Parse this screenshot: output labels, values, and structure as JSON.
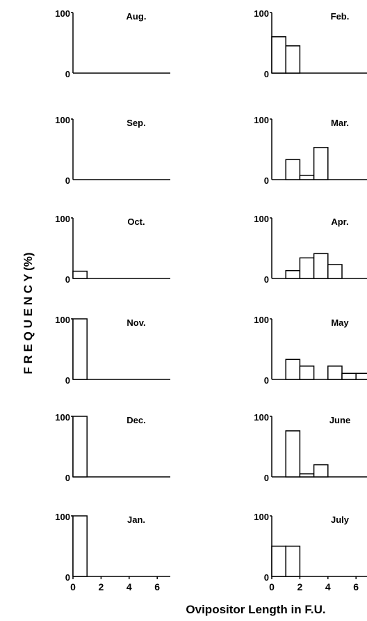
{
  "figure": {
    "ylabel": "F R E Q U E N C Y (%)",
    "xlabel": "Ovipositor Length in F.U."
  },
  "chart_data": [
    {
      "type": "bar",
      "month": "Aug.",
      "x": [
        0.5,
        1.5,
        2.5,
        3.5,
        4.5,
        5.5,
        6.5
      ],
      "values": [
        0,
        0,
        0,
        0,
        0,
        0,
        0
      ],
      "xlim": [
        0,
        7
      ],
      "ylim": [
        0,
        100
      ],
      "yticks": [
        "0",
        "100"
      ],
      "xticks": []
    },
    {
      "type": "bar",
      "month": "Sep.",
      "x": [
        0.5,
        1.5,
        2.5,
        3.5,
        4.5,
        5.5,
        6.5
      ],
      "values": [
        0,
        0,
        0,
        0,
        0,
        0,
        0
      ],
      "xlim": [
        0,
        7
      ],
      "ylim": [
        0,
        100
      ],
      "yticks": [
        "0",
        "100"
      ],
      "xticks": []
    },
    {
      "type": "bar",
      "month": "Oct.",
      "x": [
        0.5,
        1.5,
        2.5,
        3.5,
        4.5,
        5.5,
        6.5
      ],
      "values": [
        12,
        0,
        0,
        0,
        0,
        0,
        0
      ],
      "xlim": [
        0,
        7
      ],
      "ylim": [
        0,
        100
      ],
      "yticks": [
        "0",
        "100"
      ],
      "xticks": []
    },
    {
      "type": "bar",
      "month": "Nov.",
      "x": [
        0.5,
        1.5,
        2.5,
        3.5,
        4.5,
        5.5,
        6.5
      ],
      "values": [
        100,
        0,
        0,
        0,
        0,
        0,
        0
      ],
      "xlim": [
        0,
        7
      ],
      "ylim": [
        0,
        100
      ],
      "yticks": [
        "0",
        "100"
      ],
      "xticks": []
    },
    {
      "type": "bar",
      "month": "Dec.",
      "x": [
        0.5,
        1.5,
        2.5,
        3.5,
        4.5,
        5.5,
        6.5
      ],
      "values": [
        100,
        0,
        0,
        0,
        0,
        0,
        0
      ],
      "xlim": [
        0,
        7
      ],
      "ylim": [
        0,
        100
      ],
      "yticks": [
        "0",
        "100"
      ],
      "xticks": []
    },
    {
      "type": "bar",
      "month": "Jan.",
      "x": [
        0.5,
        1.5,
        2.5,
        3.5,
        4.5,
        5.5,
        6.5
      ],
      "values": [
        100,
        0,
        0,
        0,
        0,
        0,
        0
      ],
      "xlim": [
        0,
        7
      ],
      "ylim": [
        0,
        100
      ],
      "yticks": [
        "0",
        "100"
      ],
      "xticks": [
        "0",
        "2",
        "4",
        "6"
      ]
    },
    {
      "type": "bar",
      "month": "Feb.",
      "x": [
        0.5,
        1.5,
        2.5,
        3.5,
        4.5,
        5.5,
        6.5
      ],
      "values": [
        60,
        45,
        0,
        0,
        0,
        0,
        0
      ],
      "xlim": [
        0,
        7
      ],
      "ylim": [
        0,
        100
      ],
      "yticks": [
        "0",
        "100"
      ],
      "xticks": []
    },
    {
      "type": "bar",
      "month": "Mar.",
      "x": [
        0.5,
        1.5,
        2.5,
        3.5,
        4.5,
        5.5,
        6.5
      ],
      "values": [
        0,
        33,
        7,
        53,
        0,
        0,
        0
      ],
      "xlim": [
        0,
        7
      ],
      "ylim": [
        0,
        100
      ],
      "yticks": [
        "0",
        "100"
      ],
      "xticks": []
    },
    {
      "type": "bar",
      "month": "Apr.",
      "x": [
        0.5,
        1.5,
        2.5,
        3.5,
        4.5,
        5.5,
        6.5
      ],
      "values": [
        0,
        13,
        34,
        41,
        23,
        0,
        0
      ],
      "xlim": [
        0,
        7
      ],
      "ylim": [
        0,
        100
      ],
      "yticks": [
        "0",
        "100"
      ],
      "xticks": []
    },
    {
      "type": "bar",
      "month": "May",
      "x": [
        0.5,
        1.5,
        2.5,
        3.5,
        4.5,
        5.5,
        6.5
      ],
      "values": [
        0,
        33,
        22,
        0,
        22,
        10,
        10
      ],
      "xlim": [
        0,
        7
      ],
      "ylim": [
        0,
        100
      ],
      "yticks": [
        "0",
        "100"
      ],
      "xticks": []
    },
    {
      "type": "bar",
      "month": "June",
      "x": [
        0.5,
        1.5,
        2.5,
        3.5,
        4.5,
        5.5,
        6.5
      ],
      "values": [
        0,
        76,
        5,
        20,
        0,
        0,
        0
      ],
      "xlim": [
        0,
        7
      ],
      "ylim": [
        0,
        100
      ],
      "yticks": [
        "0",
        "100"
      ],
      "xticks": []
    },
    {
      "type": "bar",
      "month": "July",
      "x": [
        0.5,
        1.5,
        2.5,
        3.5,
        4.5,
        5.5,
        6.5
      ],
      "values": [
        50,
        50,
        0,
        0,
        0,
        0,
        0
      ],
      "xlim": [
        0,
        7
      ],
      "ylim": [
        0,
        100
      ],
      "yticks": [
        "0",
        "100"
      ],
      "xticks": [
        "0",
        "2",
        "4",
        "6"
      ]
    }
  ]
}
